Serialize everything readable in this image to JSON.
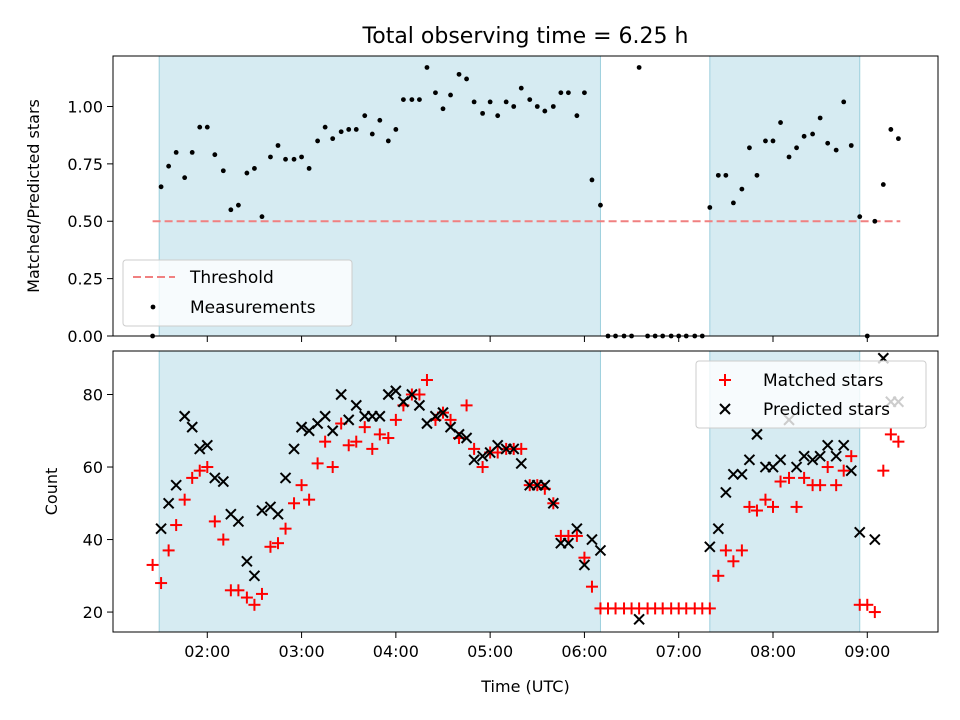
{
  "chart_data": [
    {
      "type": "scatter",
      "title": "Total observing time = 6.25 h",
      "xlabel": "",
      "ylabel": "Matched/Predicted stars",
      "xlim": [
        1.0,
        9.75
      ],
      "ylim": [
        0.0,
        1.22
      ],
      "yticks": [
        0.0,
        0.25,
        0.5,
        0.75,
        1.0
      ],
      "ytick_labels": [
        "0.00",
        "0.25",
        "0.50",
        "0.75",
        "1.00"
      ],
      "grid": false,
      "legend_position": "lower-left",
      "shaded_intervals": [
        [
          1.49,
          6.17
        ],
        [
          7.33,
          8.92
        ]
      ],
      "threshold": {
        "name": "Threshold",
        "value": 0.5,
        "x_range": [
          1.42,
          9.35
        ],
        "color": "#f08080"
      },
      "measurements": {
        "name": "Measurements",
        "color": "#000000",
        "x": [
          1.42,
          1.51,
          1.59,
          1.67,
          1.76,
          1.84,
          1.92,
          2.0,
          2.08,
          2.17,
          2.25,
          2.33,
          2.42,
          2.5,
          2.58,
          2.67,
          2.75,
          2.83,
          2.92,
          3.0,
          3.08,
          3.17,
          3.25,
          3.33,
          3.42,
          3.5,
          3.58,
          3.67,
          3.75,
          3.83,
          3.92,
          4.0,
          4.08,
          4.17,
          4.25,
          4.33,
          4.42,
          4.5,
          4.58,
          4.67,
          4.75,
          4.83,
          4.92,
          5.0,
          5.08,
          5.17,
          5.25,
          5.33,
          5.42,
          5.5,
          5.58,
          5.67,
          5.75,
          5.83,
          5.92,
          6.0,
          6.08,
          6.17,
          6.25,
          6.33,
          6.42,
          6.5,
          6.58,
          6.67,
          6.75,
          6.83,
          6.92,
          7.0,
          7.08,
          7.17,
          7.25,
          7.33,
          7.42,
          7.5,
          7.58,
          7.67,
          7.75,
          7.83,
          7.92,
          8.0,
          8.08,
          8.17,
          8.25,
          8.33,
          8.42,
          8.5,
          8.58,
          8.67,
          8.75,
          8.83,
          8.92,
          9.0,
          9.08,
          9.17,
          9.25,
          9.33
        ],
        "y": [
          0.0,
          0.65,
          0.74,
          0.8,
          0.69,
          0.8,
          0.91,
          0.91,
          0.79,
          0.72,
          0.55,
          0.57,
          0.71,
          0.73,
          0.52,
          0.78,
          0.83,
          0.77,
          0.77,
          0.78,
          0.73,
          0.85,
          0.91,
          0.86,
          0.89,
          0.9,
          0.9,
          0.96,
          0.88,
          0.94,
          0.85,
          0.9,
          1.03,
          1.03,
          1.03,
          1.17,
          1.06,
          0.99,
          1.05,
          1.14,
          1.12,
          1.02,
          0.97,
          1.02,
          0.96,
          1.02,
          1.0,
          1.08,
          1.03,
          1.0,
          0.98,
          1.0,
          1.06,
          1.06,
          0.96,
          1.06,
          0.68,
          0.57,
          0.0,
          0.0,
          0.0,
          0.0,
          1.17,
          0.0,
          0.0,
          0.0,
          0.0,
          0.0,
          0.0,
          0.0,
          0.0,
          0.56,
          0.7,
          0.7,
          0.58,
          0.64,
          0.82,
          0.7,
          0.85,
          0.85,
          0.93,
          0.78,
          0.82,
          0.87,
          0.88,
          0.95,
          0.84,
          0.81,
          1.02,
          0.83,
          0.52,
          0.0,
          0.5,
          0.66,
          0.9,
          0.86
        ]
      }
    },
    {
      "type": "scatter",
      "title": "",
      "xlabel": "Time (UTC)",
      "ylabel": "Count",
      "xlim": [
        1.0,
        9.75
      ],
      "ylim": [
        14.5,
        92.0
      ],
      "yticks": [
        20,
        40,
        60,
        80
      ],
      "ytick_labels": [
        "20",
        "40",
        "60",
        "80"
      ],
      "xticks": [
        2,
        3,
        4,
        5,
        6,
        7,
        8,
        9
      ],
      "xtick_labels": [
        "02:00",
        "03:00",
        "04:00",
        "05:00",
        "06:00",
        "07:00",
        "08:00",
        "09:00"
      ],
      "grid": false,
      "legend_position": "upper-right",
      "shaded_intervals": [
        [
          1.49,
          6.17
        ],
        [
          7.33,
          8.92
        ]
      ],
      "series": [
        {
          "name": "Matched stars",
          "marker": "plus",
          "color": "#ff0000",
          "x": [
            1.42,
            1.51,
            1.59,
            1.67,
            1.76,
            1.84,
            1.92,
            2.0,
            2.08,
            2.17,
            2.25,
            2.33,
            2.42,
            2.5,
            2.58,
            2.67,
            2.75,
            2.83,
            2.92,
            3.0,
            3.08,
            3.17,
            3.25,
            3.33,
            3.42,
            3.5,
            3.58,
            3.67,
            3.75,
            3.83,
            3.92,
            4.0,
            4.08,
            4.17,
            4.25,
            4.33,
            4.42,
            4.5,
            4.58,
            4.67,
            4.75,
            4.83,
            4.92,
            5.0,
            5.08,
            5.17,
            5.25,
            5.33,
            5.42,
            5.5,
            5.58,
            5.67,
            5.75,
            5.83,
            5.92,
            6.0,
            6.08,
            6.17,
            6.25,
            6.33,
            6.42,
            6.5,
            6.58,
            6.67,
            6.75,
            6.83,
            6.92,
            7.0,
            7.08,
            7.17,
            7.25,
            7.33,
            7.42,
            7.5,
            7.58,
            7.67,
            7.75,
            7.83,
            7.92,
            8.0,
            8.08,
            8.17,
            8.25,
            8.33,
            8.42,
            8.5,
            8.58,
            8.67,
            8.75,
            8.83,
            8.92,
            9.0,
            9.08,
            9.17,
            9.25,
            9.33
          ],
          "y": [
            33,
            28,
            37,
            44,
            51,
            57,
            59,
            60,
            45,
            40,
            26,
            26,
            24,
            22,
            25,
            38,
            39,
            43,
            50,
            55,
            51,
            61,
            67,
            60,
            72,
            66,
            67,
            71,
            65,
            69,
            68,
            73,
            77,
            80,
            80,
            84,
            73,
            75,
            73,
            68,
            77,
            65,
            60,
            64,
            64,
            65,
            65,
            65,
            55,
            55,
            54,
            50,
            41,
            41,
            41,
            35,
            27,
            21,
            21,
            21,
            21,
            21,
            21,
            21,
            21,
            21,
            21,
            21,
            21,
            21,
            21,
            21,
            30,
            37,
            34,
            37,
            49,
            48,
            51,
            49,
            56,
            57,
            49,
            57,
            55,
            55,
            60,
            55,
            59,
            63,
            22,
            22,
            20,
            59,
            69,
            67
          ]
        },
        {
          "name": "Predicted stars",
          "marker": "x",
          "color": "#000000",
          "x": [
            1.51,
            1.59,
            1.67,
            1.76,
            1.84,
            1.92,
            2.0,
            2.08,
            2.17,
            2.25,
            2.33,
            2.42,
            2.5,
            2.58,
            2.67,
            2.75,
            2.83,
            2.92,
            3.0,
            3.08,
            3.17,
            3.25,
            3.33,
            3.42,
            3.5,
            3.58,
            3.67,
            3.75,
            3.83,
            3.92,
            4.0,
            4.08,
            4.17,
            4.25,
            4.33,
            4.42,
            4.5,
            4.58,
            4.67,
            4.75,
            4.83,
            4.92,
            5.0,
            5.08,
            5.17,
            5.25,
            5.33,
            5.42,
            5.5,
            5.58,
            5.67,
            5.75,
            5.83,
            5.92,
            6.0,
            6.08,
            6.17,
            6.58,
            7.33,
            7.42,
            7.5,
            7.58,
            7.67,
            7.75,
            7.83,
            7.92,
            8.0,
            8.08,
            8.17,
            8.25,
            8.33,
            8.42,
            8.5,
            8.58,
            8.67,
            8.75,
            8.83,
            8.92,
            9.08,
            9.17,
            9.25,
            9.33
          ],
          "y": [
            43,
            50,
            55,
            74,
            71,
            65,
            66,
            57,
            56,
            47,
            45,
            34,
            30,
            48,
            49,
            47,
            57,
            65,
            71,
            70,
            72,
            74,
            70,
            80,
            73,
            77,
            74,
            74,
            74,
            80,
            81,
            78,
            80,
            77,
            72,
            74,
            75,
            71,
            69,
            68,
            62,
            63,
            64,
            66,
            65,
            65,
            61,
            55,
            55,
            55,
            50,
            39,
            39,
            43,
            33,
            40,
            37,
            18,
            38,
            43,
            53,
            58,
            58,
            62,
            69,
            60,
            60,
            62,
            73,
            60,
            63,
            62,
            63,
            66,
            63,
            66,
            59,
            42,
            40,
            90,
            78,
            78
          ]
        }
      ]
    }
  ]
}
